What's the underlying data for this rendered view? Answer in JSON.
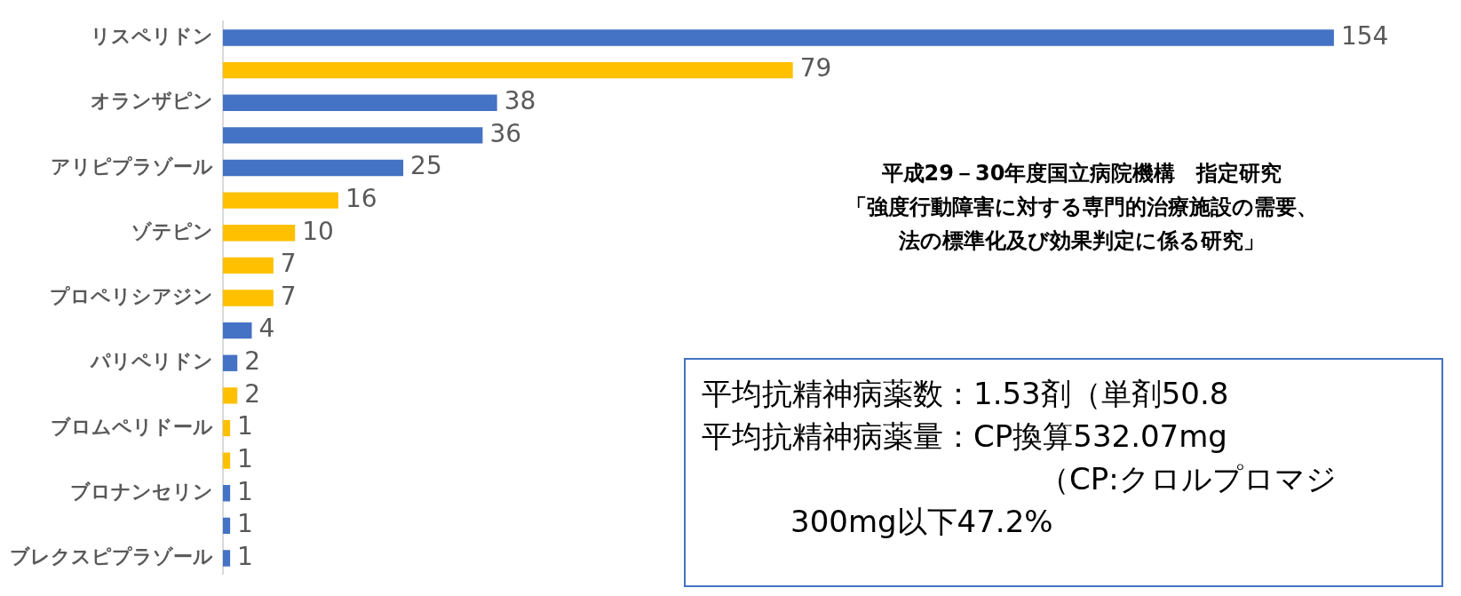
{
  "chart_data": {
    "type": "bar",
    "orientation": "horizontal",
    "categories": [
      "リスペリドン",
      null,
      "オランザピン",
      null,
      "アリピプラゾール",
      null,
      "ゾテピン",
      null,
      "プロペリシアジン",
      null,
      "パリペリドン",
      null,
      "ブロムペリドール",
      null,
      "ブロナンセリン",
      null,
      "ブレクスピプラゾール"
    ],
    "values": [
      154,
      79,
      38,
      36,
      25,
      16,
      10,
      7,
      7,
      4,
      2,
      2,
      1,
      1,
      1,
      1,
      1
    ],
    "colors": [
      "#4472c4",
      "#ffc000",
      "#4472c4",
      "#4472c4",
      "#4472c4",
      "#ffc000",
      "#ffc000",
      "#ffc000",
      "#ffc000",
      "#4472c4",
      "#4472c4",
      "#ffc000",
      "#ffc000",
      "#ffc000",
      "#4472c4",
      "#4472c4",
      "#4472c4"
    ],
    "data_labels": true,
    "legend": false,
    "annotations": [
      "平成29－30年度国立病院機構　指定研究",
      "「強度行動障害に対する専門的治療施設の需要、",
      "法の標準化及び効果判定に係る研究」",
      "平均抗精神病薬数：1.53剤（単剤50.8",
      "平均抗精神病薬量：CP換算532.07mg",
      "（CP:クロルプロマジ",
      "300mg以下47.2%"
    ]
  }
}
